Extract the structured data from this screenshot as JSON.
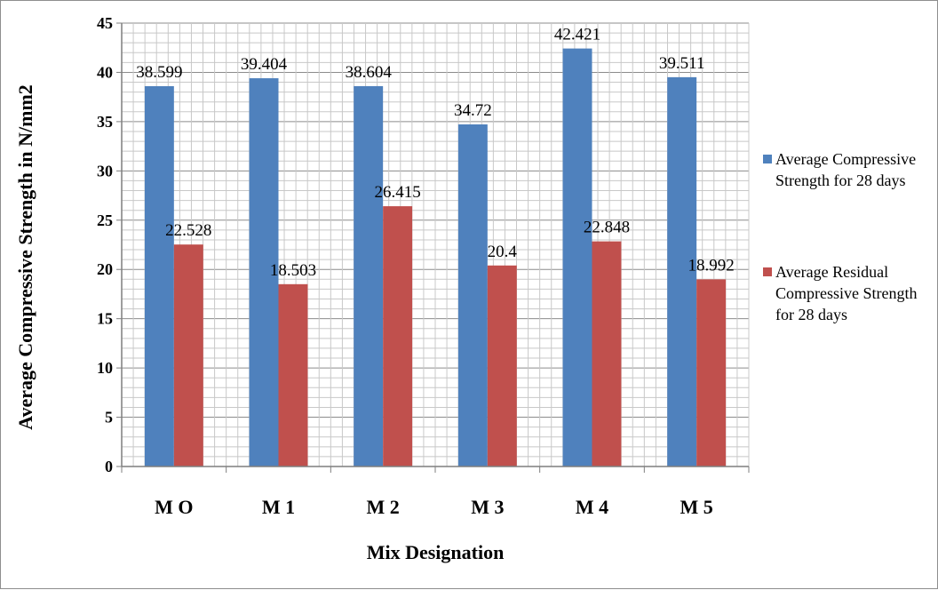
{
  "chart_data": {
    "type": "bar",
    "title": "",
    "xlabel": "Mix Designation",
    "ylabel": "Average Compressive Strength in N/mm2",
    "ylim": [
      0,
      45
    ],
    "ytick_step": 5,
    "grid": "on",
    "legend_position": "right",
    "categories": [
      "M O",
      "M 1",
      "M 2",
      "M 3",
      "M 4",
      "M 5"
    ],
    "series": [
      {
        "name": "Average Compressive Strength for 28 days",
        "legend_lines": [
          "Average Compressive",
          "Strength for 28 days"
        ],
        "color": "#4f81bd",
        "values": [
          38.599,
          39.404,
          38.604,
          34.72,
          42.421,
          39.511
        ],
        "labels": [
          "38.599",
          "39.404",
          "38.604",
          "34.72",
          "42.421",
          "39.511"
        ]
      },
      {
        "name": "Average Residual Compressive Strength for 28 days",
        "legend_lines": [
          "Average Residual",
          "Compressive Strength",
          "for 28 days"
        ],
        "color": "#c0504d",
        "values": [
          22.528,
          18.503,
          26.415,
          20.4,
          22.848,
          18.992
        ],
        "labels": [
          "22.528",
          "18.503",
          "26.415",
          "20.4",
          "22.848",
          "18.992"
        ]
      }
    ]
  }
}
